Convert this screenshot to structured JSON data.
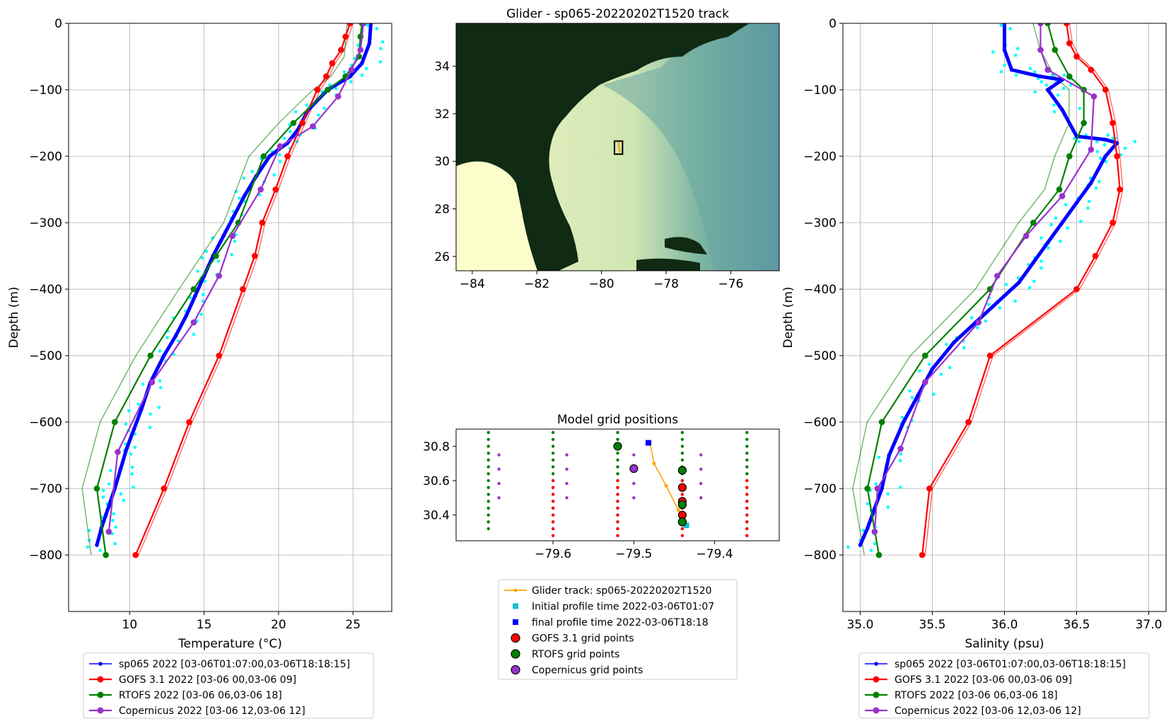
{
  "chart_data": [
    {
      "type": "line",
      "id": "temperature-profile",
      "title": "",
      "xlabel": "Temperature (°C)",
      "ylabel": "Depth (m)",
      "xlim": [
        5.9,
        27.6
      ],
      "ylim": [
        -885,
        0
      ],
      "xticks": [
        10,
        15,
        20,
        25
      ],
      "yticks": [
        0,
        -100,
        -200,
        -300,
        -400,
        -500,
        -600,
        -700,
        -800
      ],
      "grid": true,
      "series": [
        {
          "name": "sp065 2022 [03-06T01:07:00,03-06T18:18:15]",
          "color": "#0000ff",
          "x": [
            26.2,
            26.1,
            25.6,
            24.8,
            23.3,
            22.0,
            21.3,
            20.6,
            19.4,
            18.5,
            17.7,
            17.0,
            16.3,
            15.6,
            15.0,
            14.4,
            13.8,
            13.1,
            12.3,
            11.4,
            10.8,
            10.3,
            9.8,
            9.4,
            9.0,
            8.7,
            8.4,
            8.1,
            7.8
          ],
          "y": [
            0,
            -30,
            -60,
            -80,
            -100,
            -130,
            -160,
            -180,
            -200,
            -230,
            -260,
            -290,
            -320,
            -350,
            -380,
            -410,
            -440,
            -470,
            -500,
            -540,
            -580,
            -610,
            -640,
            -670,
            -700,
            -720,
            -740,
            -760,
            -785
          ]
        },
        {
          "name": "GOFS 3.1 2022 [03-06 00,03-06 09]",
          "color": "#ff0000",
          "x": [
            24.8,
            24.5,
            24.2,
            23.6,
            23.2,
            22.6,
            21.6,
            20.6,
            19.8,
            18.9,
            18.4,
            17.6,
            16.0,
            14.0,
            12.3,
            10.4
          ],
          "y": [
            0,
            -20,
            -40,
            -60,
            -80,
            -100,
            -150,
            -200,
            -250,
            -300,
            -350,
            -400,
            -500,
            -600,
            -700,
            -800
          ]
        },
        {
          "name": "RTOFS 2022 [03-06 06,03-06 18]",
          "color": "#008000",
          "x": [
            25.6,
            25.5,
            25.4,
            24.5,
            23.3,
            21.0,
            19.0,
            17.3,
            15.8,
            14.3,
            11.4,
            9.0,
            7.8,
            8.4
          ],
          "y": [
            0,
            -20,
            -50,
            -80,
            -100,
            -150,
            -200,
            -300,
            -350,
            -400,
            -500,
            -600,
            -700,
            -800
          ]
        },
        {
          "name": "Copernicus 2022 [03-06 12,03-06 12]",
          "color": "#9932cc",
          "x": [
            25.7,
            25.5,
            24.9,
            24.0,
            22.3,
            20.1,
            18.8,
            16.9,
            16.0,
            14.3,
            11.5,
            9.2,
            8.6
          ],
          "y": [
            0,
            -40,
            -70,
            -110,
            -155,
            -185,
            -250,
            -320,
            -380,
            -450,
            -540,
            -645,
            -765
          ]
        }
      ],
      "legend": "bottom"
    },
    {
      "type": "scatter",
      "id": "glider-track-map",
      "title": "Glider - sp065-20220202T1520 track",
      "xlim": [
        -84.5,
        -74.5
      ],
      "ylim": [
        25.4,
        35.8
      ],
      "xticks": [
        -84,
        -82,
        -80,
        -78,
        -76
      ],
      "yticks": [
        26,
        28,
        30,
        32,
        34
      ],
      "glider_lon": -79.44,
      "glider_lat": 30.6
    },
    {
      "type": "scatter",
      "id": "model-grid-positions",
      "title": "Model grid positions",
      "xlim": [
        -79.72,
        -79.32
      ],
      "ylim": [
        30.25,
        30.9
      ],
      "xticks": [
        -79.6,
        -79.5,
        -79.4
      ],
      "yticks": [
        30.4,
        30.6,
        30.8
      ],
      "glider_track": {
        "name": "Glider track: sp065-20220202T1520",
        "color": "#ffa500",
        "x": [
          -79.48,
          -79.475,
          -79.46,
          -79.445,
          -79.435
        ],
        "y": [
          30.82,
          30.7,
          30.57,
          30.43,
          30.35
        ]
      },
      "initial_profile": {
        "name": "Initial profile time 2022-03-06T01:07",
        "color": "#17becf",
        "x": -79.435,
        "y": 30.34
      },
      "final_profile": {
        "name": "final profile time 2022-03-06T18:18",
        "color": "#0000ff",
        "x": -79.482,
        "y": 30.82
      },
      "gofs_points": {
        "name": "GOFS 3.1 grid points",
        "color": "#ff0000",
        "x": [
          -79.44,
          -79.44,
          -79.44,
          -79.44
        ],
        "y": [
          30.56,
          30.48,
          30.4,
          30.36
        ]
      },
      "rtofs_points": {
        "name": "RTOFS grid points",
        "color": "#008000",
        "x": [
          -79.52,
          -79.44,
          -79.44,
          -79.44
        ],
        "y": [
          30.8,
          30.66,
          30.46,
          30.36
        ]
      },
      "copernicus_points": {
        "name": "Copernicus grid points",
        "color": "#9932cc",
        "x": [
          -79.5
        ],
        "y": [
          30.67
        ]
      }
    },
    {
      "type": "line",
      "id": "salinity-profile",
      "title": "",
      "xlabel": "Salinity (psu)",
      "ylabel": "Depth (m)",
      "xlim": [
        34.88,
        37.12
      ],
      "ylim": [
        -885,
        0
      ],
      "xticks": [
        35.0,
        35.5,
        36.0,
        36.5,
        37.0
      ],
      "yticks": [
        0,
        -100,
        -200,
        -300,
        -400,
        -500,
        -600,
        -700,
        -800
      ],
      "grid": true,
      "series": [
        {
          "name": "sp065 2022 [03-06T01:07:00,03-06T18:18:15]",
          "color": "#0000ff",
          "x": [
            36.0,
            36.0,
            36.05,
            36.25,
            36.4,
            36.3,
            36.4,
            36.5,
            36.7,
            36.78,
            36.7,
            36.6,
            36.5,
            36.4,
            36.3,
            36.2,
            36.1,
            35.95,
            35.8,
            35.65,
            35.5,
            35.4,
            35.3,
            35.2,
            35.15,
            35.1,
            35.05,
            35.0
          ],
          "y": [
            0,
            -40,
            -70,
            -80,
            -85,
            -100,
            -130,
            -170,
            -175,
            -180,
            -200,
            -240,
            -270,
            -300,
            -330,
            -360,
            -390,
            -420,
            -450,
            -480,
            -520,
            -560,
            -600,
            -650,
            -700,
            -730,
            -760,
            -785
          ]
        },
        {
          "name": "GOFS 3.1 2022 [03-06 00,03-06 09]",
          "color": "#ff0000",
          "x": [
            36.43,
            36.45,
            36.5,
            36.6,
            36.7,
            36.75,
            36.78,
            36.8,
            36.75,
            36.63,
            36.5,
            35.9,
            35.75,
            35.48,
            35.43
          ],
          "y": [
            0,
            -30,
            -50,
            -70,
            -100,
            -150,
            -200,
            -250,
            -300,
            -350,
            -400,
            -500,
            -600,
            -700,
            -800
          ]
        },
        {
          "name": "RTOFS 2022 [03-06 06,03-06 18]",
          "color": "#008000",
          "x": [
            36.3,
            36.35,
            36.45,
            36.55,
            36.55,
            36.45,
            36.38,
            36.2,
            35.9,
            35.45,
            35.15,
            35.05,
            35.13
          ],
          "y": [
            0,
            -40,
            -80,
            -100,
            -150,
            -200,
            -250,
            -300,
            -400,
            -500,
            -600,
            -700,
            -800
          ]
        },
        {
          "name": "Copernicus 2022 [03-06 12,03-06 12]",
          "color": "#9932cc",
          "x": [
            36.25,
            36.25,
            36.3,
            36.62,
            36.6,
            36.4,
            36.15,
            35.95,
            35.82,
            35.45,
            35.28,
            35.12,
            35.1
          ],
          "y": [
            0,
            -40,
            -70,
            -110,
            -190,
            -260,
            -320,
            -380,
            -450,
            -540,
            -640,
            -700,
            -765
          ]
        }
      ],
      "legend": "bottom"
    }
  ],
  "map_legend": [
    {
      "label": "Glider track: sp065-20220202T1520",
      "marker": "line",
      "color": "#ffa500"
    },
    {
      "label": "Initial profile time 2022-03-06T01:07",
      "marker": "square",
      "color": "#17becf"
    },
    {
      "label": "final profile time 2022-03-06T18:18",
      "marker": "square",
      "color": "#0000ff"
    },
    {
      "label": "GOFS 3.1 grid points",
      "marker": "circle",
      "color": "#ff0000"
    },
    {
      "label": "RTOFS grid points",
      "marker": "circle",
      "color": "#008000"
    },
    {
      "label": "Copernicus grid points",
      "marker": "circle",
      "color": "#9932cc"
    }
  ],
  "profile_legend": [
    {
      "label": "sp065 2022 [03-06T01:07:00,03-06T18:18:15]",
      "color": "#0000ff",
      "small": true
    },
    {
      "label": "GOFS 3.1 2022 [03-06 00,03-06 09]",
      "color": "#ff0000",
      "small": false
    },
    {
      "label": "RTOFS 2022 [03-06 06,03-06 18]",
      "color": "#008000",
      "small": false
    },
    {
      "label": "Copernicus 2022 [03-06 12,03-06 12]",
      "color": "#9932cc",
      "small": false
    }
  ]
}
